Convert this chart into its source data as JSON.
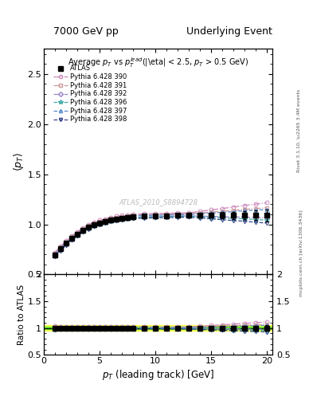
{
  "title_left": "7000 GeV pp",
  "title_right": "Underlying Event",
  "plot_title": "Average $p_T$ vs $p_T^{lead}$(|\\eta| < 2.5, $p_T$ > 0.5 GeV)",
  "xlabel": "$p_T$ (leading track) [GeV]",
  "ylabel_main": "$\\langle p_T \\rangle$",
  "ylabel_ratio": "Ratio to ATLAS",
  "watermark": "ATLAS_2010_S8894728",
  "rivet_text": "Rivet 3.1.10, \\u2265 3.4M events",
  "mcplots_text": "mcplots.cern.ch [arXiv:1306.3436]",
  "xlim": [
    0.5,
    20.5
  ],
  "ylim_main": [
    0.5,
    2.75
  ],
  "ylim_ratio": [
    0.5,
    2.0
  ],
  "series": [
    {
      "label": "Pythia 6.428 390",
      "color": "#cc88bb",
      "linestyle": "-.",
      "marker": "o",
      "markersize": 3.5
    },
    {
      "label": "Pythia 6.428 391",
      "color": "#cc9999",
      "linestyle": "-.",
      "marker": "s",
      "markersize": 3.5
    },
    {
      "label": "Pythia 6.428 392",
      "color": "#9988cc",
      "linestyle": "-.",
      "marker": "D",
      "markersize": 3.5
    },
    {
      "label": "Pythia 6.428 396",
      "color": "#44aaaa",
      "linestyle": "--",
      "marker": "*",
      "markersize": 4.5
    },
    {
      "label": "Pythia 6.428 397",
      "color": "#5588cc",
      "linestyle": "--",
      "marker": "^",
      "markersize": 3.5
    },
    {
      "label": "Pythia 6.428 398",
      "color": "#334488",
      "linestyle": "--",
      "marker": "v",
      "markersize": 3.5
    }
  ],
  "atlas_x": [
    1.0,
    1.5,
    2.0,
    2.5,
    3.0,
    3.5,
    4.0,
    4.5,
    5.0,
    5.5,
    6.0,
    6.5,
    7.0,
    7.5,
    8.0,
    9.0,
    10.0,
    11.0,
    12.0,
    13.0,
    14.0,
    15.0,
    16.0,
    17.0,
    18.0,
    19.0,
    20.0
  ],
  "atlas_y": [
    0.695,
    0.755,
    0.81,
    0.86,
    0.9,
    0.94,
    0.97,
    0.995,
    1.015,
    1.03,
    1.045,
    1.055,
    1.063,
    1.07,
    1.075,
    1.08,
    1.083,
    1.085,
    1.088,
    1.09,
    1.09,
    1.09,
    1.09,
    1.09,
    1.092,
    1.09,
    1.09
  ],
  "atlas_yerr": [
    0.008,
    0.008,
    0.007,
    0.007,
    0.006,
    0.006,
    0.005,
    0.005,
    0.005,
    0.005,
    0.005,
    0.005,
    0.005,
    0.005,
    0.006,
    0.007,
    0.008,
    0.01,
    0.012,
    0.015,
    0.02,
    0.025,
    0.03,
    0.035,
    0.04,
    0.05,
    0.06
  ],
  "mc_offsets": [
    0.025,
    0.015,
    -0.005,
    -0.008,
    0.008,
    -0.018
  ],
  "mc_spread_high": [
    0.1,
    0.06,
    -0.02,
    -0.04,
    0.05,
    -0.06
  ],
  "band_yellow": 0.05,
  "band_green": 0.02
}
